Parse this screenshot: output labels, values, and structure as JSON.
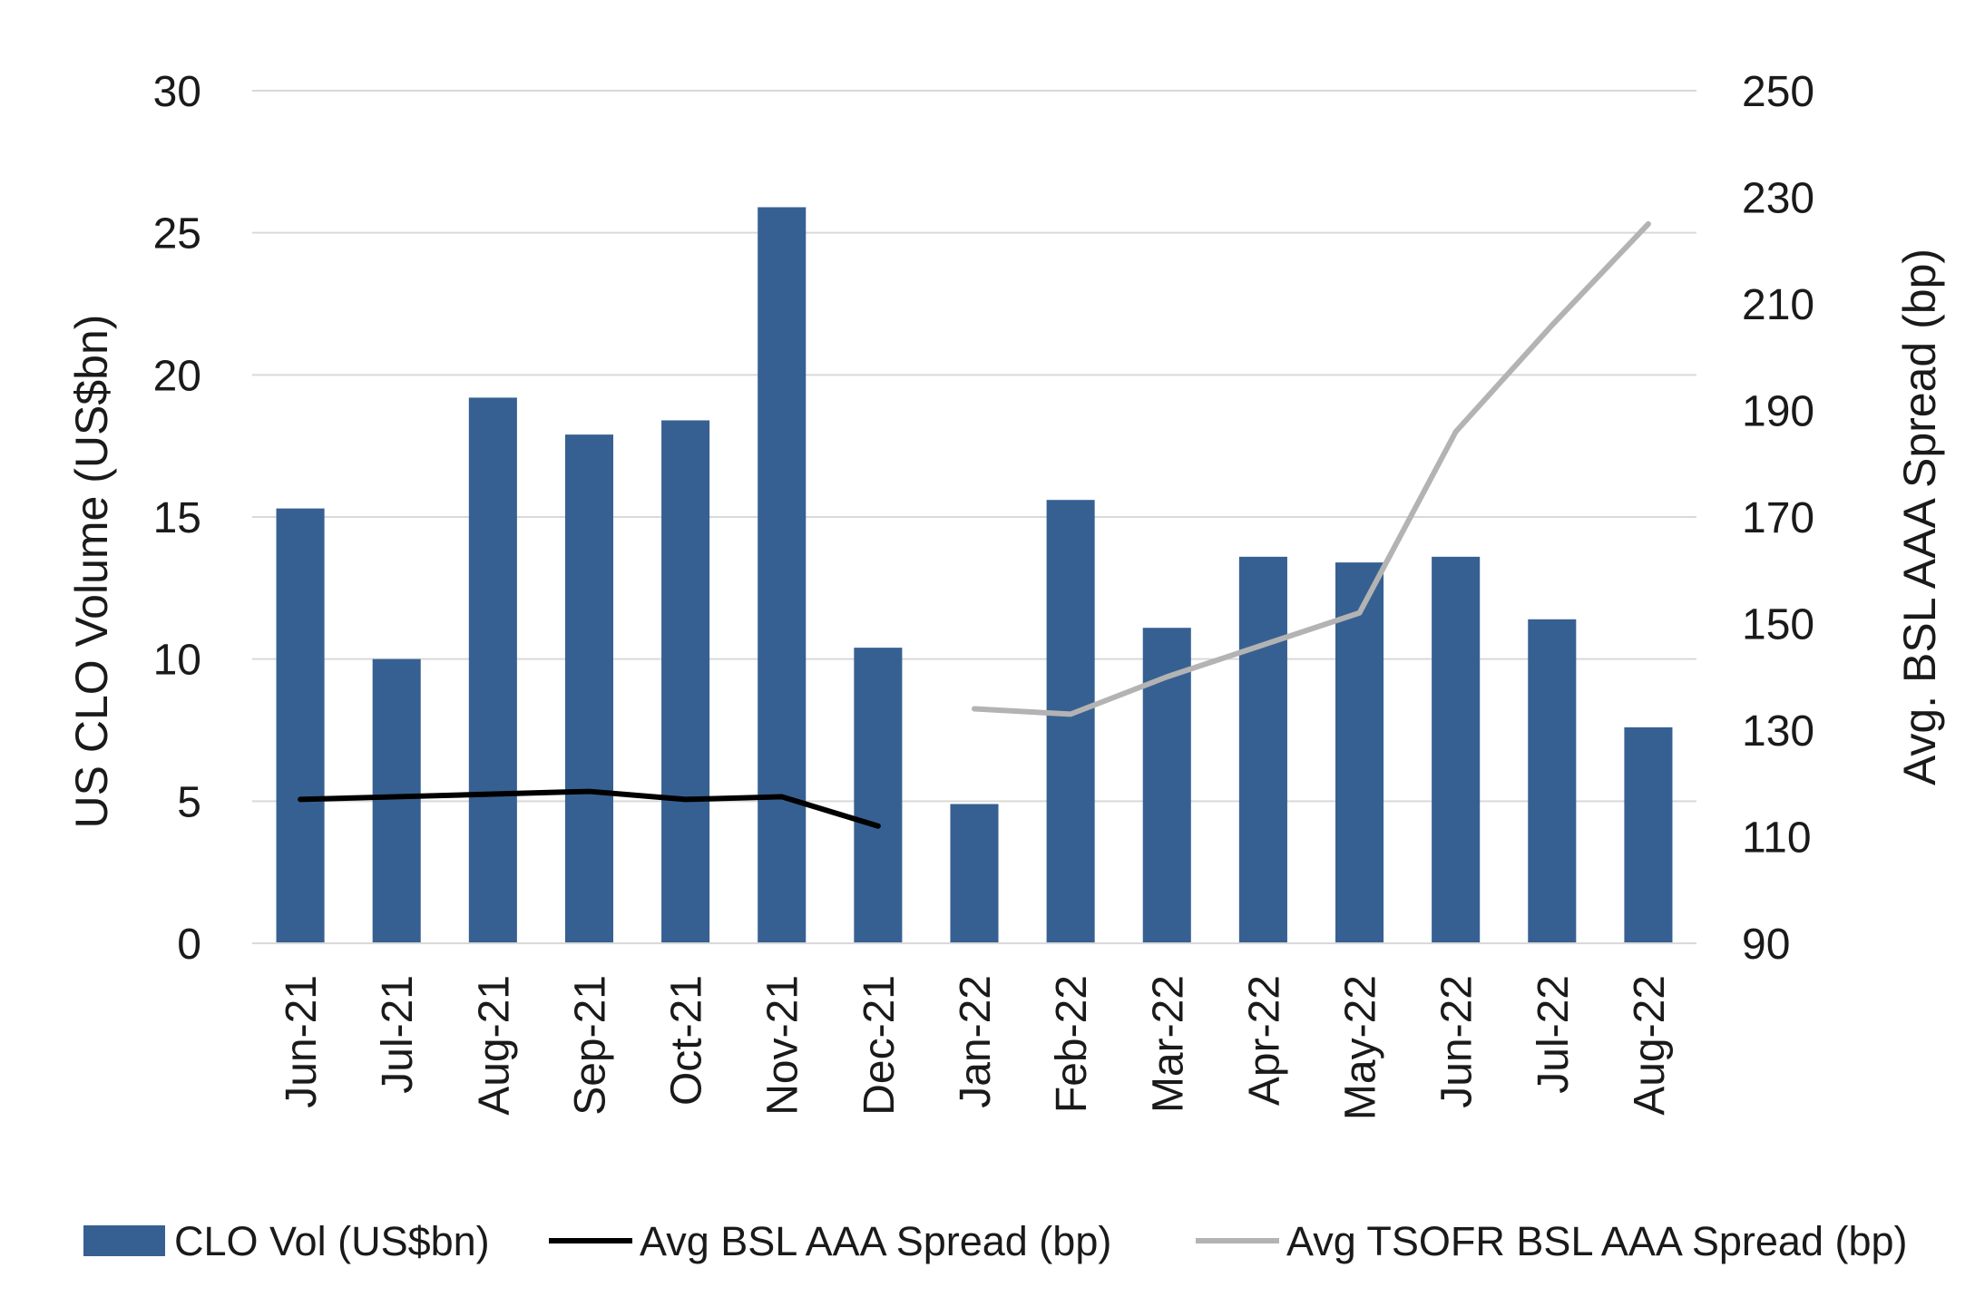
{
  "chart_data": {
    "type": "bar",
    "title": "",
    "categories": [
      "Jun-21",
      "Jul-21",
      "Aug-21",
      "Sep-21",
      "Oct-21",
      "Nov-21",
      "Dec-21",
      "Jan-22",
      "Feb-22",
      "Mar-22",
      "Apr-22",
      "May-22",
      "Jun-22",
      "Jul-22",
      "Aug-22"
    ],
    "ylabel": "US CLO Volume (US$bn)",
    "y2label": "Avg. BSL AAA Spread (bp)",
    "ylim": [
      0,
      30
    ],
    "y2lim": [
      90,
      250
    ],
    "yticks": [
      "0",
      "5",
      "10",
      "15",
      "20",
      "25",
      "30"
    ],
    "y2ticks": [
      "90",
      "110",
      "130",
      "150",
      "170",
      "190",
      "210",
      "230",
      "250"
    ],
    "grid": true,
    "legend_position": "bottom",
    "series": [
      {
        "name": "CLO Vol (US$bn)",
        "type": "bar",
        "axis": "left",
        "color": "#376092",
        "values": [
          15.3,
          10.0,
          19.2,
          17.9,
          18.4,
          25.9,
          10.4,
          4.9,
          15.6,
          11.1,
          13.6,
          13.4,
          13.6,
          11.4,
          7.6
        ]
      },
      {
        "name": "Avg BSL AAA Spread (bp)",
        "type": "line",
        "axis": "right",
        "color": "#000000",
        "values": [
          117,
          117.5,
          118,
          118.5,
          117,
          117.5,
          112,
          null,
          null,
          null,
          null,
          null,
          null,
          null,
          null
        ]
      },
      {
        "name": "Avg TSOFR BSL AAA Spread (bp)",
        "type": "line",
        "axis": "right",
        "color": "#b3b3b3",
        "values": [
          null,
          null,
          null,
          null,
          null,
          null,
          null,
          134,
          133,
          140,
          146,
          152,
          186,
          206,
          225
        ]
      }
    ]
  }
}
